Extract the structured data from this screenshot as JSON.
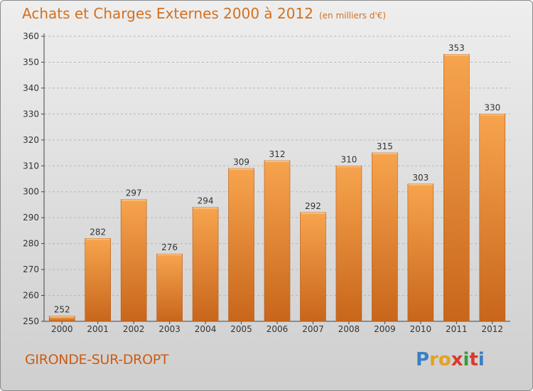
{
  "title": "Achats et Charges Externes 2000 à 2012",
  "subtitle": "(en milliers d'€)",
  "commune": "GIRONDE-SUR-DROPT",
  "logo": {
    "letters": [
      "P",
      "r",
      "o",
      "x",
      "i",
      "t",
      "i"
    ],
    "colors": [
      "#3a7fc4",
      "#e5a21b",
      "#e5a21b",
      "#d93a2b",
      "#3a9b3a",
      "#d93a2b",
      "#3a7fc4"
    ]
  },
  "colors": {
    "bar_light": "#f7a44e",
    "bar_dark": "#c8661b",
    "title": "#d4701d",
    "grid": "#b7b7b7"
  },
  "chart_data": {
    "type": "bar",
    "categories": [
      "2000",
      "2001",
      "2002",
      "2003",
      "2004",
      "2005",
      "2006",
      "2007",
      "2008",
      "2009",
      "2010",
      "2011",
      "2012"
    ],
    "values": [
      252,
      282,
      297,
      276,
      294,
      309,
      312,
      292,
      310,
      315,
      303,
      353,
      330
    ],
    "data_labels": [
      "252",
      "282",
      "297",
      "276",
      "294",
      "309",
      "312",
      "292",
      "310",
      "315",
      "303",
      "353",
      "330"
    ],
    "y_ticks": [
      "250",
      "260",
      "270",
      "280",
      "290",
      "300",
      "310",
      "320",
      "330",
      "340",
      "350",
      "360"
    ],
    "ylim": [
      250,
      360
    ],
    "grid": true,
    "legend": "none"
  }
}
